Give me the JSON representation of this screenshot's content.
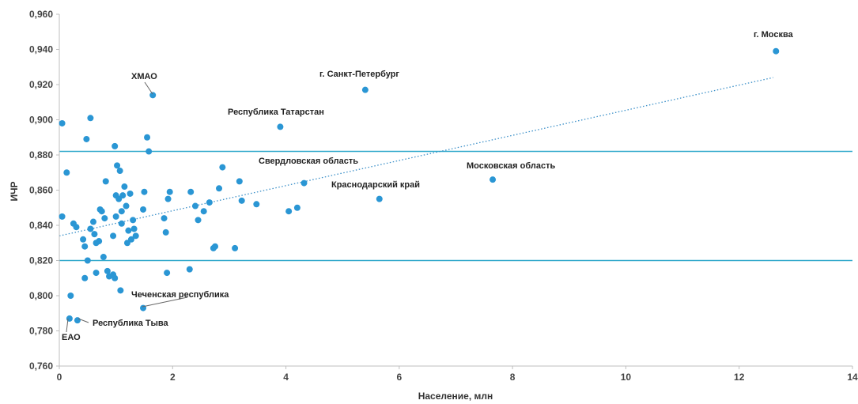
{
  "chart_data": {
    "type": "scatter",
    "xlabel": "Население, млн",
    "ylabel": "ИЧР",
    "xlim": [
      0,
      14
    ],
    "ylim": [
      0.76,
      0.96
    ],
    "xticks": [
      "0",
      "2",
      "4",
      "6",
      "8",
      "10",
      "12",
      "14"
    ],
    "yticks": [
      "0,760",
      "0,780",
      "0,800",
      "0,820",
      "0,840",
      "0,860",
      "0,880",
      "0,900",
      "0,920",
      "0,940",
      "0,960"
    ],
    "colors": {
      "point": "#2a96d4",
      "hline": "#33aacc",
      "trend": "#3a8fc8",
      "axis": "#bfbfbf"
    },
    "hlines": [
      0.882,
      0.82
    ],
    "trendline": {
      "style": "dotted",
      "x": [
        0,
        12.6
      ],
      "y": [
        0.834,
        0.924
      ]
    },
    "points": [
      [
        0.05,
        0.845
      ],
      [
        0.05,
        0.898
      ],
      [
        0.13,
        0.87
      ],
      [
        0.18,
        0.787
      ],
      [
        0.2,
        0.8
      ],
      [
        0.25,
        0.841
      ],
      [
        0.3,
        0.839
      ],
      [
        0.32,
        0.786
      ],
      [
        0.42,
        0.832
      ],
      [
        0.45,
        0.828
      ],
      [
        0.45,
        0.81
      ],
      [
        0.48,
        0.889
      ],
      [
        0.5,
        0.82
      ],
      [
        0.55,
        0.838
      ],
      [
        0.55,
        0.901
      ],
      [
        0.6,
        0.842
      ],
      [
        0.62,
        0.835
      ],
      [
        0.65,
        0.813
      ],
      [
        0.65,
        0.83
      ],
      [
        0.7,
        0.831
      ],
      [
        0.72,
        0.849
      ],
      [
        0.75,
        0.848
      ],
      [
        0.78,
        0.822
      ],
      [
        0.8,
        0.844
      ],
      [
        0.82,
        0.865
      ],
      [
        0.85,
        0.814
      ],
      [
        0.88,
        0.811
      ],
      [
        0.95,
        0.812
      ],
      [
        0.95,
        0.834
      ],
      [
        0.98,
        0.81
      ],
      [
        0.98,
        0.885
      ],
      [
        1.0,
        0.857
      ],
      [
        1.0,
        0.845
      ],
      [
        1.02,
        0.874
      ],
      [
        1.05,
        0.855
      ],
      [
        1.07,
        0.871
      ],
      [
        1.08,
        0.803
      ],
      [
        1.1,
        0.848
      ],
      [
        1.1,
        0.841
      ],
      [
        1.12,
        0.857
      ],
      [
        1.15,
        0.862
      ],
      [
        1.18,
        0.851
      ],
      [
        1.2,
        0.83
      ],
      [
        1.22,
        0.837
      ],
      [
        1.25,
        0.858
      ],
      [
        1.27,
        0.832
      ],
      [
        1.3,
        0.843
      ],
      [
        1.32,
        0.838
      ],
      [
        1.35,
        0.834
      ],
      [
        1.48,
        0.793
      ],
      [
        1.48,
        0.849
      ],
      [
        1.5,
        0.859
      ],
      [
        1.55,
        0.89
      ],
      [
        1.58,
        0.882
      ],
      [
        1.65,
        0.914
      ],
      [
        1.85,
        0.844
      ],
      [
        1.88,
        0.836
      ],
      [
        1.9,
        0.813
      ],
      [
        1.92,
        0.855
      ],
      [
        1.95,
        0.859
      ],
      [
        2.3,
        0.815
      ],
      [
        2.32,
        0.859
      ],
      [
        2.4,
        0.851
      ],
      [
        2.45,
        0.843
      ],
      [
        2.55,
        0.848
      ],
      [
        2.65,
        0.853
      ],
      [
        2.72,
        0.827
      ],
      [
        2.75,
        0.828
      ],
      [
        2.82,
        0.861
      ],
      [
        2.88,
        0.873
      ],
      [
        3.1,
        0.827
      ],
      [
        3.18,
        0.865
      ],
      [
        3.22,
        0.854
      ],
      [
        3.48,
        0.852
      ],
      [
        3.9,
        0.896
      ],
      [
        4.05,
        0.848
      ],
      [
        4.2,
        0.85
      ],
      [
        4.32,
        0.864
      ],
      [
        5.4,
        0.917
      ],
      [
        5.65,
        0.855
      ],
      [
        7.65,
        0.866
      ],
      [
        12.65,
        0.939
      ]
    ],
    "annotations": [
      {
        "label": "г. Москва"
      },
      {
        "label": "г. Санкт-Петербург"
      },
      {
        "label": "ХМАО"
      },
      {
        "label": "Республика Татарстан"
      },
      {
        "label": "Свердловская область"
      },
      {
        "label": "Московская область"
      },
      {
        "label": "Краснодарский край"
      },
      {
        "label": "Чеченская республика"
      },
      {
        "label": "Республика Тыва"
      },
      {
        "label": "ЕАО"
      }
    ]
  }
}
